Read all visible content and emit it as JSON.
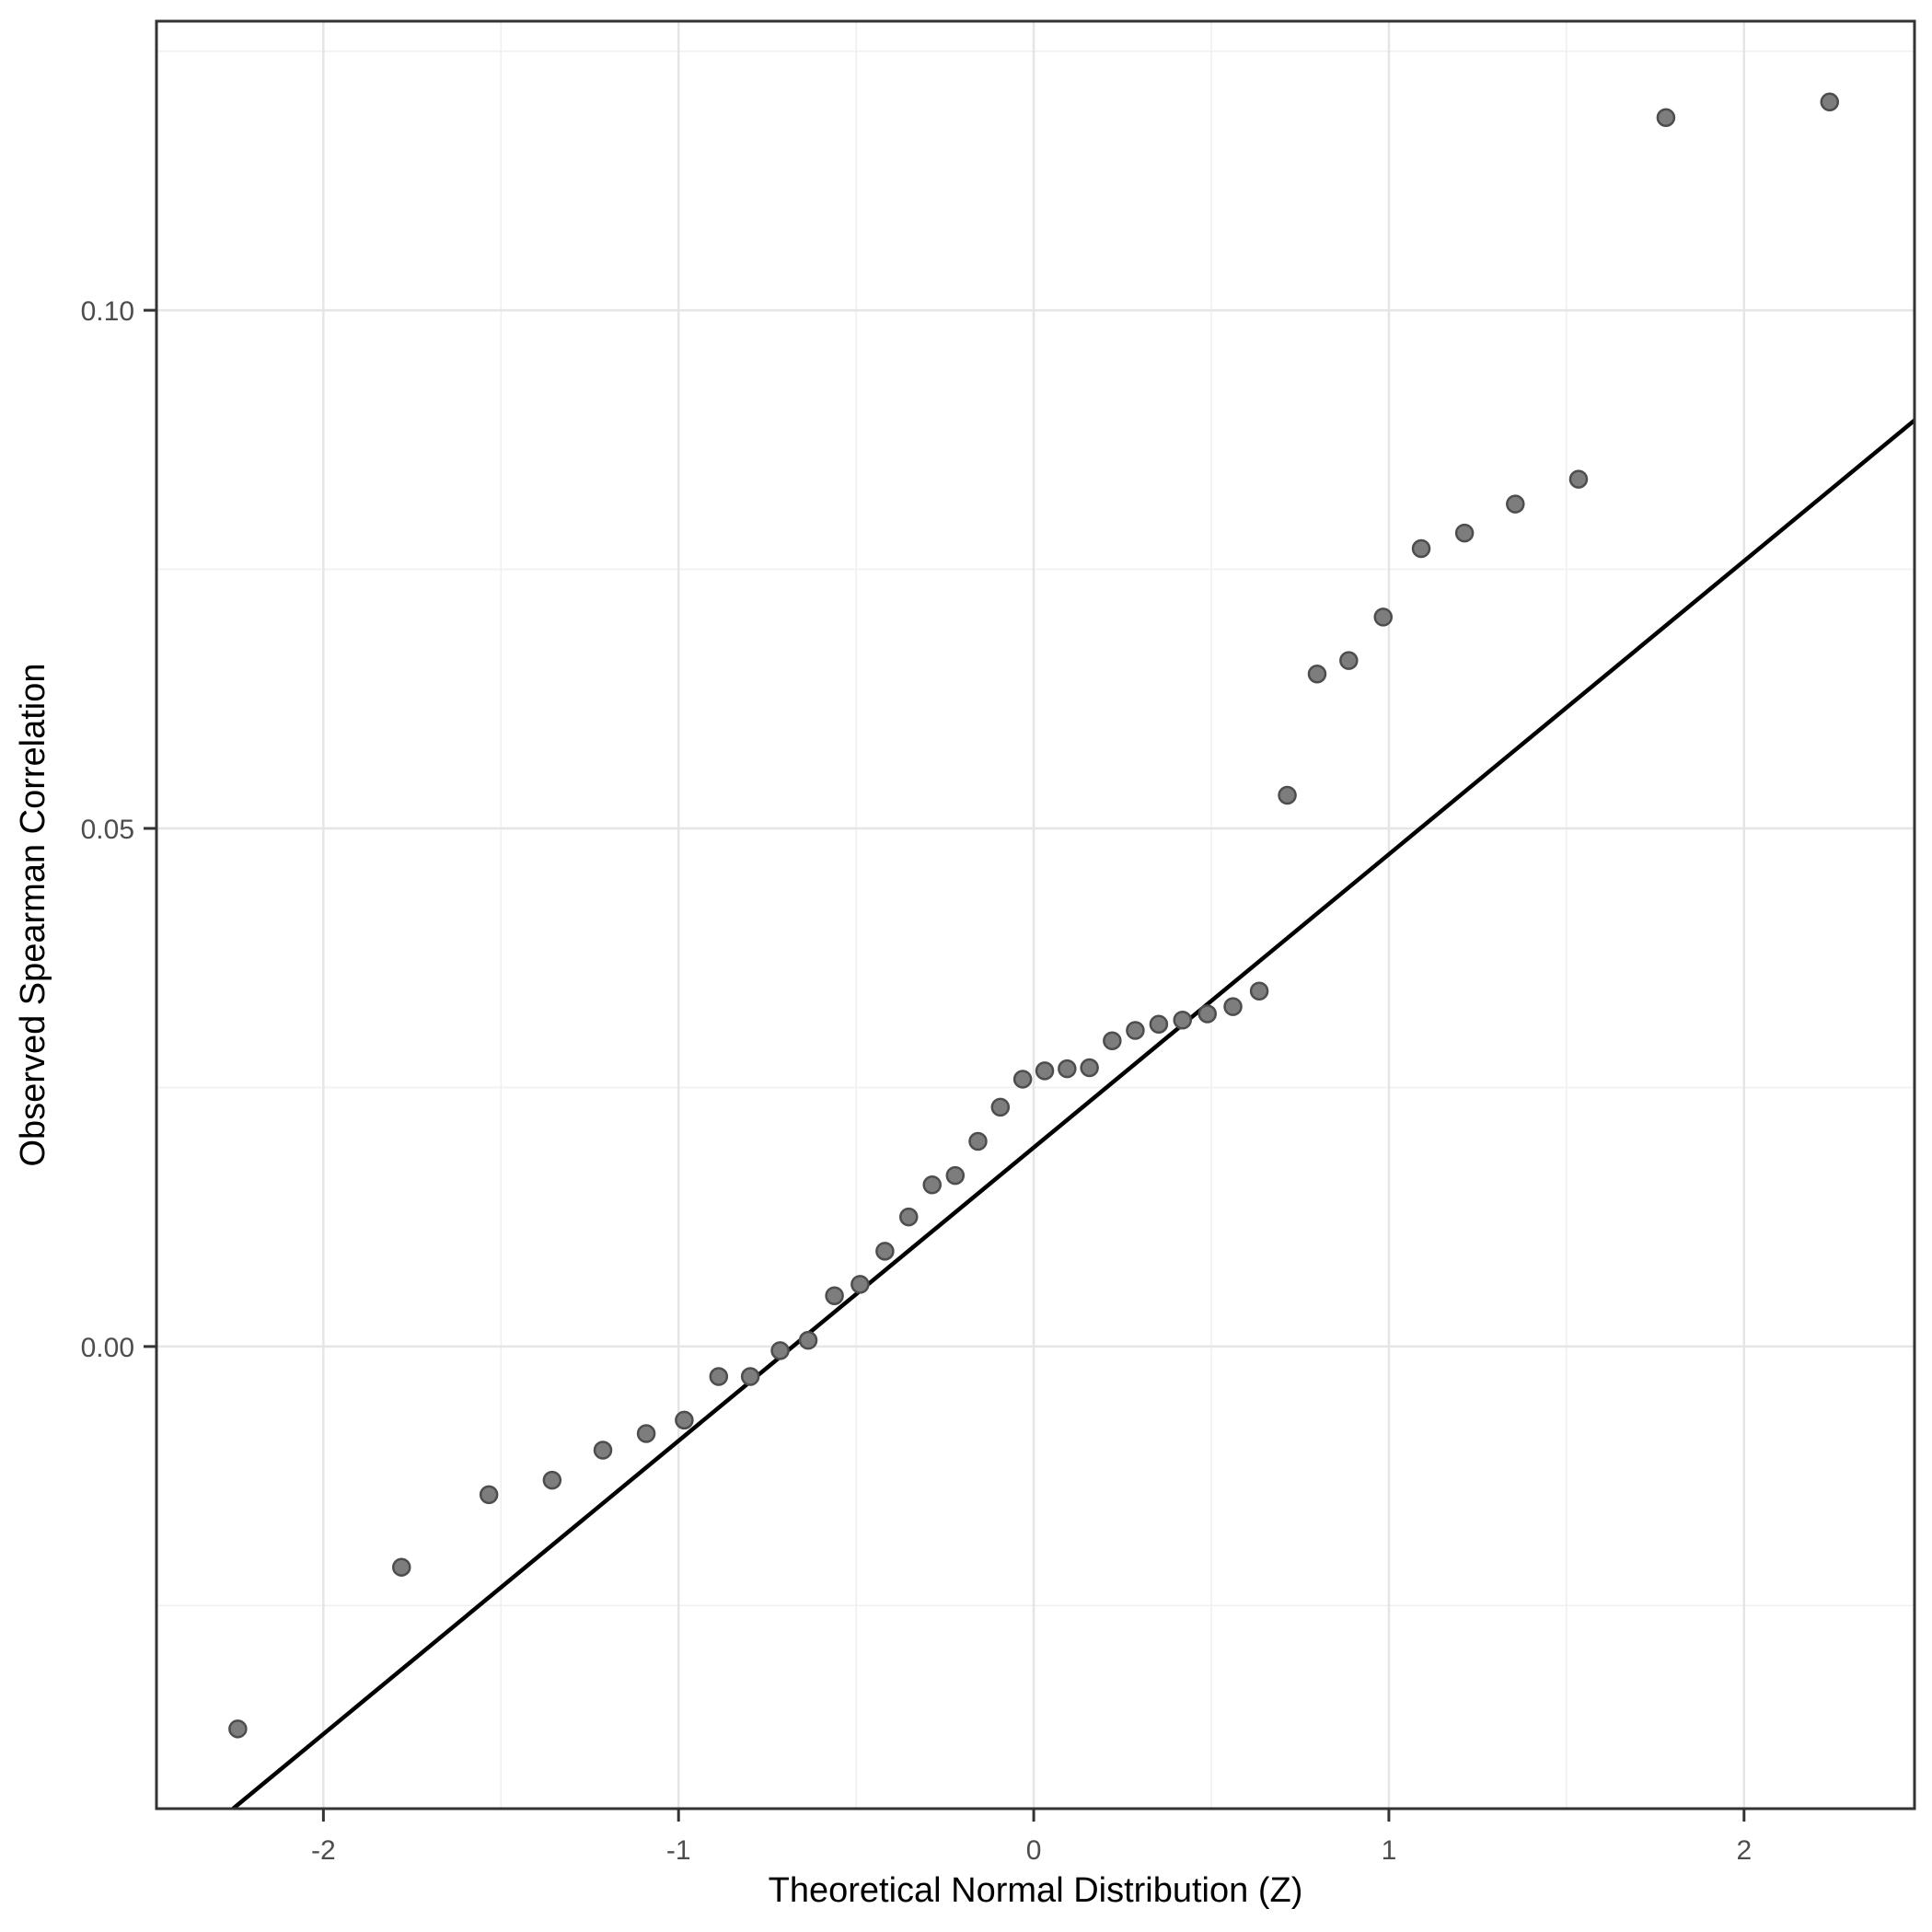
{
  "chart_data": {
    "type": "scatter",
    "title": "",
    "xlabel": "Theoretical Normal Distribution (Z)",
    "ylabel": "Observed Spearman Correlation",
    "x_domain": [
      -2.47,
      2.48
    ],
    "y_domain": [
      -0.0446,
      0.1279
    ],
    "grid": true,
    "legend_position": "none",
    "x_ticks": [
      {
        "value": -2,
        "label": "-2"
      },
      {
        "value": -1,
        "label": "-1"
      },
      {
        "value": 0,
        "label": "0"
      },
      {
        "value": 1,
        "label": "1"
      },
      {
        "value": 2,
        "label": "2"
      }
    ],
    "x_minor_gridlines": [
      -1.5,
      -0.5,
      0.5,
      1.5
    ],
    "y_ticks": [
      {
        "value": 0.0,
        "label": "0.00"
      },
      {
        "value": 0.05,
        "label": "0.05"
      },
      {
        "value": 0.1,
        "label": "0.10"
      }
    ],
    "y_minor_gridlines": [
      -0.025,
      0.025,
      0.075,
      0.125
    ],
    "n_points": 40,
    "points": [
      {
        "x": -2.241,
        "y": -0.0369
      },
      {
        "x": -1.78,
        "y": -0.0213
      },
      {
        "x": -1.534,
        "y": -0.0143
      },
      {
        "x": -1.356,
        "y": -0.0129
      },
      {
        "x": -1.213,
        "y": -0.01
      },
      {
        "x": -1.091,
        "y": -0.0084
      },
      {
        "x": -0.984,
        "y": -0.0071
      },
      {
        "x": -0.887,
        "y": -0.0029
      },
      {
        "x": -0.798,
        "y": -0.0029
      },
      {
        "x": -0.714,
        "y": -0.0004
      },
      {
        "x": -0.635,
        "y": 0.0006
      },
      {
        "x": -0.561,
        "y": 0.0049
      },
      {
        "x": -0.489,
        "y": 0.006
      },
      {
        "x": -0.419,
        "y": 0.0092
      },
      {
        "x": -0.352,
        "y": 0.0125
      },
      {
        "x": -0.286,
        "y": 0.0156
      },
      {
        "x": -0.221,
        "y": 0.0165
      },
      {
        "x": -0.157,
        "y": 0.0198
      },
      {
        "x": -0.094,
        "y": 0.0231
      },
      {
        "x": -0.031,
        "y": 0.0258
      },
      {
        "x": 0.031,
        "y": 0.0266
      },
      {
        "x": 0.094,
        "y": 0.0268
      },
      {
        "x": 0.157,
        "y": 0.0269
      },
      {
        "x": 0.221,
        "y": 0.0295
      },
      {
        "x": 0.286,
        "y": 0.0305
      },
      {
        "x": 0.352,
        "y": 0.0311
      },
      {
        "x": 0.419,
        "y": 0.0315
      },
      {
        "x": 0.489,
        "y": 0.0321
      },
      {
        "x": 0.561,
        "y": 0.0328
      },
      {
        "x": 0.635,
        "y": 0.0343
      },
      {
        "x": 0.714,
        "y": 0.0532
      },
      {
        "x": 0.798,
        "y": 0.0649
      },
      {
        "x": 0.887,
        "y": 0.0662
      },
      {
        "x": 0.984,
        "y": 0.0704
      },
      {
        "x": 1.091,
        "y": 0.077
      },
      {
        "x": 1.213,
        "y": 0.0785
      },
      {
        "x": 1.356,
        "y": 0.0813
      },
      {
        "x": 1.534,
        "y": 0.0837
      },
      {
        "x": 1.78,
        "y": 0.1186
      },
      {
        "x": 2.241,
        "y": 0.1201
      }
    ],
    "reference_line": {
      "slope": 0.0283,
      "intercept": 0.0192
    }
  },
  "colors": {
    "background": "#ffffff",
    "panel_background": "#ffffff",
    "panel_border": "#333333",
    "major_grid": "#e5e5e5",
    "minor_grid": "#f0f0f0",
    "tick_mark": "#333333",
    "tick_label": "#4d4d4d",
    "axis_title": "#000000",
    "point_fill": "#7d7d7d",
    "point_stroke": "#4d4d4d",
    "reference_line": "#000000"
  }
}
